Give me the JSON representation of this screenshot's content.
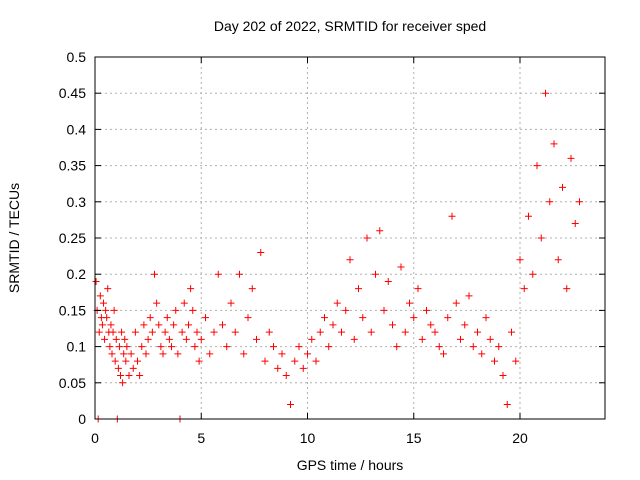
{
  "chart_data": {
    "type": "scatter",
    "title": "Day 202 of 2022, SRMTID for receiver sped",
    "xlabel": "GPS time / hours",
    "ylabel": "SRMTID / TECUs",
    "xlim": [
      0,
      24
    ],
    "ylim": [
      0,
      0.5
    ],
    "xticks": [
      0,
      5,
      10,
      15,
      20
    ],
    "xtick_labels": [
      "0",
      "5",
      "10",
      "15",
      "20"
    ],
    "yticks": [
      0,
      0.05,
      0.1,
      0.15,
      0.2,
      0.25,
      0.3,
      0.35,
      0.4,
      0.45,
      0.5
    ],
    "ytick_labels": [
      "0",
      "0.05",
      "0.1",
      "0.15",
      "0.2",
      "0.25",
      "0.3",
      "0.35",
      "0.4",
      "0.45",
      "0.5"
    ],
    "grid": true,
    "marker": "+",
    "color": "#ff0000",
    "series": [
      {
        "name": "SRMTID",
        "points": [
          [
            0.05,
            0.19
          ],
          [
            0.1,
            0.15
          ],
          [
            0.15,
            0.0
          ],
          [
            0.2,
            0.12
          ],
          [
            0.25,
            0.17
          ],
          [
            0.3,
            0.14
          ],
          [
            0.35,
            0.13
          ],
          [
            0.4,
            0.16
          ],
          [
            0.45,
            0.11
          ],
          [
            0.5,
            0.15
          ],
          [
            0.55,
            0.14
          ],
          [
            0.6,
            0.18
          ],
          [
            0.65,
            0.12
          ],
          [
            0.7,
            0.1
          ],
          [
            0.75,
            0.13
          ],
          [
            0.8,
            0.09
          ],
          [
            0.85,
            0.12
          ],
          [
            0.9,
            0.15
          ],
          [
            0.95,
            0.08
          ],
          [
            1.0,
            0.11
          ],
          [
            1.05,
            0.0
          ],
          [
            1.1,
            0.07
          ],
          [
            1.15,
            0.1
          ],
          [
            1.2,
            0.06
          ],
          [
            1.25,
            0.12
          ],
          [
            1.3,
            0.05
          ],
          [
            1.35,
            0.09
          ],
          [
            1.4,
            0.11
          ],
          [
            1.45,
            0.08
          ],
          [
            1.5,
            0.1
          ],
          [
            1.6,
            0.06
          ],
          [
            1.7,
            0.09
          ],
          [
            1.8,
            0.07
          ],
          [
            1.9,
            0.12
          ],
          [
            2.0,
            0.08
          ],
          [
            2.1,
            0.06
          ],
          [
            2.2,
            0.1
          ],
          [
            2.3,
            0.13
          ],
          [
            2.4,
            0.09
          ],
          [
            2.5,
            0.11
          ],
          [
            2.6,
            0.14
          ],
          [
            2.7,
            0.12
          ],
          [
            2.8,
            0.2
          ],
          [
            2.9,
            0.16
          ],
          [
            3.0,
            0.13
          ],
          [
            3.1,
            0.1
          ],
          [
            3.2,
            0.09
          ],
          [
            3.3,
            0.12
          ],
          [
            3.4,
            0.14
          ],
          [
            3.5,
            0.11
          ],
          [
            3.6,
            0.1
          ],
          [
            3.7,
            0.13
          ],
          [
            3.8,
            0.15
          ],
          [
            3.9,
            0.09
          ],
          [
            4.0,
            0.0
          ],
          [
            4.1,
            0.12
          ],
          [
            4.2,
            0.16
          ],
          [
            4.3,
            0.11
          ],
          [
            4.4,
            0.13
          ],
          [
            4.5,
            0.18
          ],
          [
            4.6,
            0.15
          ],
          [
            4.7,
            0.1
          ],
          [
            4.8,
            0.12
          ],
          [
            4.9,
            0.08
          ],
          [
            5.0,
            0.11
          ],
          [
            5.2,
            0.14
          ],
          [
            5.4,
            0.09
          ],
          [
            5.6,
            0.12
          ],
          [
            5.8,
            0.2
          ],
          [
            6.0,
            0.13
          ],
          [
            6.2,
            0.1
          ],
          [
            6.4,
            0.16
          ],
          [
            6.6,
            0.12
          ],
          [
            6.8,
            0.2
          ],
          [
            7.0,
            0.09
          ],
          [
            7.2,
            0.14
          ],
          [
            7.4,
            0.18
          ],
          [
            7.6,
            0.11
          ],
          [
            7.8,
            0.23
          ],
          [
            8.0,
            0.08
          ],
          [
            8.2,
            0.12
          ],
          [
            8.4,
            0.1
          ],
          [
            8.6,
            0.07
          ],
          [
            8.8,
            0.09
          ],
          [
            9.0,
            0.06
          ],
          [
            9.2,
            0.02
          ],
          [
            9.4,
            0.08
          ],
          [
            9.6,
            0.1
          ],
          [
            9.8,
            0.07
          ],
          [
            10.0,
            0.09
          ],
          [
            10.2,
            0.11
          ],
          [
            10.4,
            0.08
          ],
          [
            10.6,
            0.12
          ],
          [
            10.8,
            0.14
          ],
          [
            11.0,
            0.1
          ],
          [
            11.2,
            0.13
          ],
          [
            11.4,
            0.16
          ],
          [
            11.6,
            0.12
          ],
          [
            11.8,
            0.15
          ],
          [
            12.0,
            0.22
          ],
          [
            12.2,
            0.11
          ],
          [
            12.4,
            0.18
          ],
          [
            12.6,
            0.14
          ],
          [
            12.8,
            0.25
          ],
          [
            13.0,
            0.12
          ],
          [
            13.2,
            0.2
          ],
          [
            13.4,
            0.26
          ],
          [
            13.6,
            0.15
          ],
          [
            13.8,
            0.19
          ],
          [
            14.0,
            0.13
          ],
          [
            14.2,
            0.1
          ],
          [
            14.4,
            0.21
          ],
          [
            14.6,
            0.12
          ],
          [
            14.8,
            0.16
          ],
          [
            15.0,
            0.14
          ],
          [
            15.2,
            0.18
          ],
          [
            15.4,
            0.11
          ],
          [
            15.6,
            0.15
          ],
          [
            15.8,
            0.13
          ],
          [
            16.0,
            0.12
          ],
          [
            16.2,
            0.1
          ],
          [
            16.4,
            0.09
          ],
          [
            16.6,
            0.14
          ],
          [
            16.8,
            0.28
          ],
          [
            17.0,
            0.16
          ],
          [
            17.2,
            0.11
          ],
          [
            17.4,
            0.13
          ],
          [
            17.6,
            0.17
          ],
          [
            17.8,
            0.1
          ],
          [
            18.0,
            0.12
          ],
          [
            18.2,
            0.09
          ],
          [
            18.4,
            0.14
          ],
          [
            18.6,
            0.11
          ],
          [
            18.8,
            0.08
          ],
          [
            19.0,
            0.1
          ],
          [
            19.2,
            0.06
          ],
          [
            19.4,
            0.02
          ],
          [
            19.6,
            0.12
          ],
          [
            19.8,
            0.08
          ],
          [
            20.0,
            0.22
          ],
          [
            20.2,
            0.18
          ],
          [
            20.4,
            0.28
          ],
          [
            20.6,
            0.2
          ],
          [
            20.8,
            0.35
          ],
          [
            21.0,
            0.25
          ],
          [
            21.2,
            0.45
          ],
          [
            21.4,
            0.3
          ],
          [
            21.6,
            0.38
          ],
          [
            21.8,
            0.22
          ],
          [
            22.0,
            0.32
          ],
          [
            22.2,
            0.18
          ],
          [
            22.4,
            0.36
          ],
          [
            22.6,
            0.27
          ],
          [
            22.8,
            0.3
          ]
        ]
      }
    ]
  }
}
